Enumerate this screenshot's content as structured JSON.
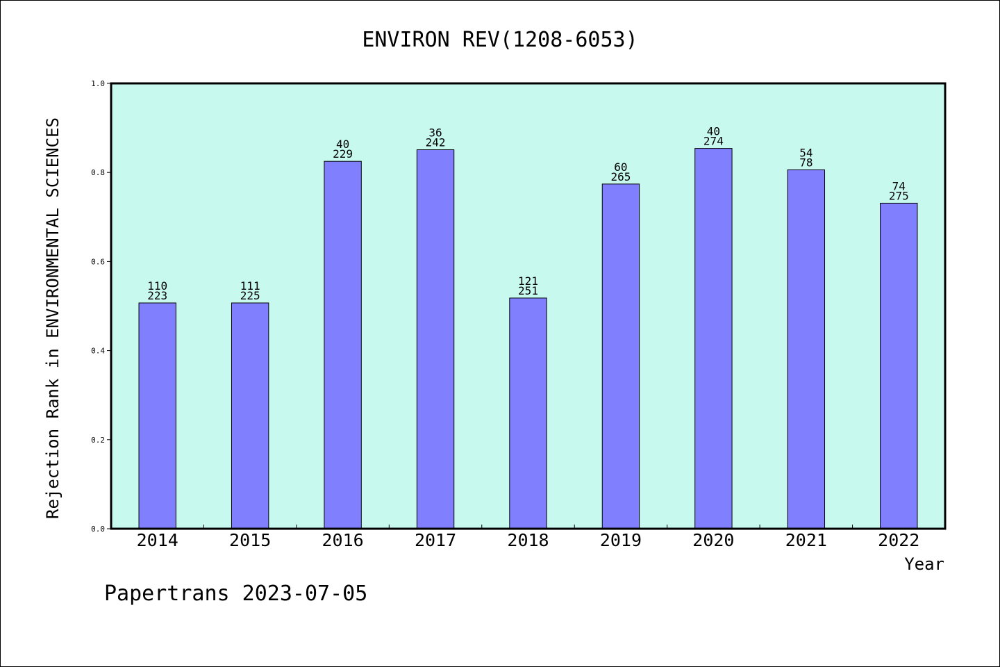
{
  "chart_data": {
    "type": "bar",
    "title": "ENVIRON REV(1208-6053)",
    "xlabel": "Year",
    "ylabel": "Rejection Rank in ENVIRONMENTAL SCIENCES",
    "ylim": [
      0,
      1.0
    ],
    "yticks": [
      "0.0",
      "0.2",
      "0.4",
      "0.6",
      "0.8",
      "1.0"
    ],
    "categories": [
      "2014",
      "2015",
      "2016",
      "2017",
      "2018",
      "2019",
      "2020",
      "2021",
      "2022"
    ],
    "values": [
      0.507,
      0.507,
      0.825,
      0.851,
      0.518,
      0.774,
      0.854,
      0.806,
      0.731
    ],
    "labels_top": [
      "110",
      "111",
      "40",
      "36",
      "121",
      "60",
      "40",
      "54",
      "74"
    ],
    "labels_bottom": [
      "223",
      "225",
      "229",
      "242",
      "251",
      "265",
      "274",
      "78",
      "275"
    ],
    "grid": false,
    "colors": {
      "plot_background": "#c8f9ee",
      "bar_fill": "#8080ff",
      "bar_stroke": "#000000",
      "axis": "#000000"
    }
  },
  "footer": {
    "credit": "Papertrans 2023-07-05"
  }
}
